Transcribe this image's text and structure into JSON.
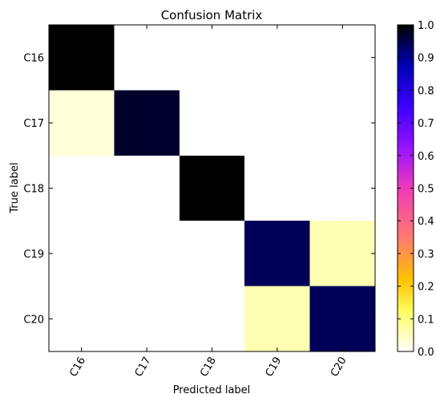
{
  "chart_data": {
    "type": "heatmap",
    "title": "Confusion Matrix",
    "xlabel": "Predicted label",
    "ylabel": "True label",
    "x_categories": [
      "C16",
      "C17",
      "C18",
      "C19",
      "C20"
    ],
    "y_categories": [
      "C16",
      "C17",
      "C18",
      "C19",
      "C20"
    ],
    "values": [
      [
        1.0,
        0.0,
        0.0,
        0.0,
        0.0
      ],
      [
        0.03,
        0.97,
        0.0,
        0.0,
        0.0
      ],
      [
        0.0,
        0.0,
        1.0,
        0.0,
        0.0
      ],
      [
        0.0,
        0.0,
        0.0,
        0.94,
        0.06
      ],
      [
        0.0,
        0.0,
        0.0,
        0.06,
        0.94
      ]
    ],
    "colorbar": {
      "min": 0.0,
      "max": 1.0,
      "ticks": [
        "0.0",
        "0.1",
        "0.2",
        "0.3",
        "0.4",
        "0.5",
        "0.6",
        "0.7",
        "0.8",
        "0.9",
        "1.0"
      ],
      "colormap": "gnuplot2_r"
    },
    "grid": false
  }
}
